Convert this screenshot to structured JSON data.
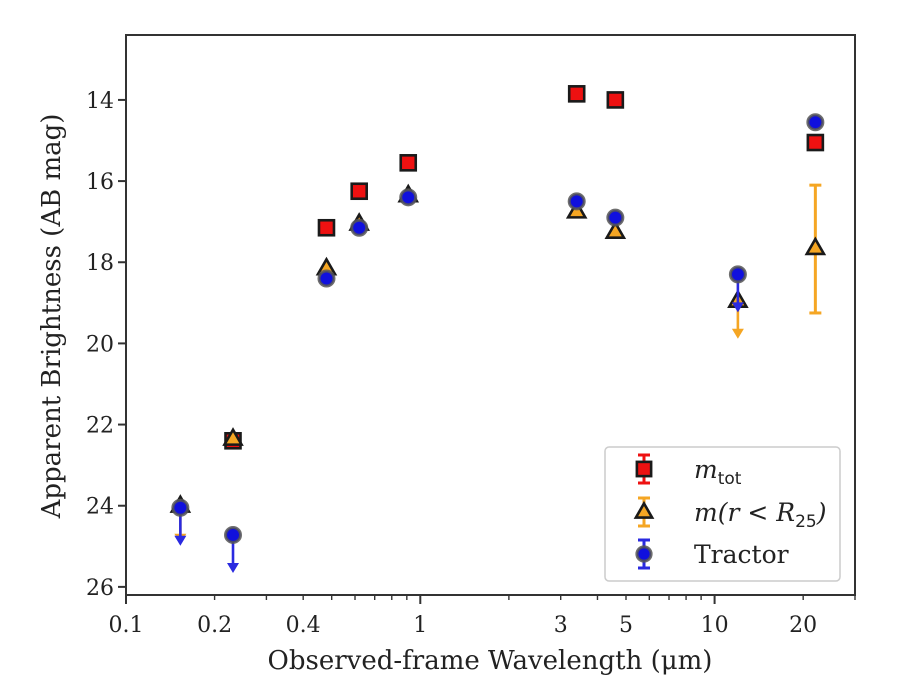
{
  "chart_data": {
    "type": "scatter",
    "xlabel": "Observed-frame Wavelength (μm)",
    "ylabel": "Apparent Brightness (AB mag)",
    "x_scale": "log",
    "y_inverted": true,
    "xlim": [
      0.1,
      30
    ],
    "ylim": [
      26.2,
      12.4
    ],
    "x_ticks": [
      {
        "value": 0.1,
        "label": "0.1"
      },
      {
        "value": 0.2,
        "label": "0.2"
      },
      {
        "value": 0.4,
        "label": "0.4"
      },
      {
        "value": 1,
        "label": "1"
      },
      {
        "value": 3,
        "label": "3"
      },
      {
        "value": 5,
        "label": "5"
      },
      {
        "value": 10,
        "label": "10"
      },
      {
        "value": 20,
        "label": "20"
      }
    ],
    "y_ticks": [
      {
        "value": 14,
        "label": "14"
      },
      {
        "value": 16,
        "label": "16"
      },
      {
        "value": 18,
        "label": "18"
      },
      {
        "value": 20,
        "label": "20"
      },
      {
        "value": 22,
        "label": "22"
      },
      {
        "value": 24,
        "label": "24"
      },
      {
        "value": 26,
        "label": "26"
      }
    ],
    "grid": false,
    "legend_position": "bottom-right",
    "series": [
      {
        "key": "mtot",
        "legend_main": "m",
        "legend_sub": "tot",
        "marker": "square",
        "fill_color": "#ee1111",
        "edge_color": "#1a1a1a",
        "points": [
          {
            "x": 0.231,
            "y": 22.4
          },
          {
            "x": 0.48,
            "y": 17.15
          },
          {
            "x": 0.62,
            "y": 16.25
          },
          {
            "x": 0.91,
            "y": 15.55
          },
          {
            "x": 3.4,
            "y": 13.85
          },
          {
            "x": 4.6,
            "y": 14.0
          },
          {
            "x": 22,
            "y": 15.05
          }
        ]
      },
      {
        "key": "mr25",
        "legend_main": "m(r < R",
        "legend_sub": "25",
        "legend_tail": ")",
        "marker": "triangle",
        "fill_color": "#f5a623",
        "edge_color": "#1a1a1a",
        "error_color": "#f5a623",
        "points": [
          {
            "x": 0.153,
            "y": 24.0,
            "upper_limit": true
          },
          {
            "x": 0.231,
            "y": 22.35
          },
          {
            "x": 0.48,
            "y": 18.15
          },
          {
            "x": 0.62,
            "y": 17.05
          },
          {
            "x": 0.91,
            "y": 16.35
          },
          {
            "x": 3.4,
            "y": 16.75
          },
          {
            "x": 4.6,
            "y": 17.25
          },
          {
            "x": 12,
            "y": 18.95,
            "upper_limit": true
          },
          {
            "x": 22,
            "y": 17.65,
            "yerr_low": 16.1,
            "yerr_high": 19.25
          }
        ]
      },
      {
        "key": "tractor",
        "legend_main": "Tractor",
        "marker": "circle",
        "fill_color": "#1010dd",
        "edge_color": "#555555",
        "error_color": "#2a2ae0",
        "points": [
          {
            "x": 0.153,
            "y": 24.05,
            "upper_limit": true
          },
          {
            "x": 0.231,
            "y": 24.72,
            "upper_limit": true
          },
          {
            "x": 0.48,
            "y": 18.4
          },
          {
            "x": 0.62,
            "y": 17.15
          },
          {
            "x": 0.91,
            "y": 16.4
          },
          {
            "x": 3.4,
            "y": 16.5
          },
          {
            "x": 4.6,
            "y": 16.9
          },
          {
            "x": 12,
            "y": 18.3,
            "upper_limit": true
          },
          {
            "x": 22,
            "y": 14.55
          }
        ]
      }
    ]
  }
}
